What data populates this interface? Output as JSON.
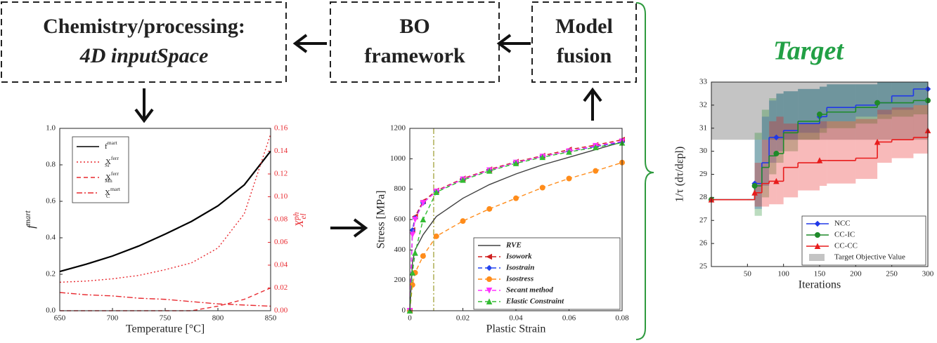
{
  "boxes": [
    {
      "lines": [
        "Chemistry/processing:",
        "4D inputSpace"
      ]
    },
    {
      "lines": [
        "BO",
        "framework"
      ]
    },
    {
      "lines": [
        "Model",
        "fusion"
      ]
    }
  ],
  "target_label": "Target",
  "chart_data": [
    {
      "type": "line",
      "x": [
        650,
        675,
        700,
        725,
        750,
        775,
        800,
        825,
        850
      ],
      "xlim": [
        650,
        850
      ],
      "xticks": [
        650,
        700,
        750,
        800,
        850
      ],
      "ylim": [
        0,
        1
      ],
      "yticks": [
        {
          "value": 0,
          "label": "0.0"
        },
        0.2,
        0.4,
        0.6,
        0.8,
        {
          "value": 1,
          "label": "1.0"
        }
      ],
      "y2lim": [
        0,
        0.16
      ],
      "y2ticks": [
        {
          "value": 0,
          "label": "0.00"
        },
        0.02,
        0.04,
        0.06,
        0.08,
        {
          "value": 0.1,
          "label": "0.10"
        },
        0.12,
        0.14,
        0.16
      ],
      "xlabel": "Temperature [°C]",
      "ylabel": {
        "base": "f",
        "sup": "mart"
      },
      "y2label": {
        "base": "X",
        "sup": "ph",
        "sub": "el"
      },
      "y2color": "#e8292f",
      "series": [
        {
          "name": {
            "base": "f",
            "sup": "mart"
          },
          "color": "#000000",
          "linestyle": "solid",
          "values": [
            0.215,
            0.255,
            0.3,
            0.355,
            0.42,
            0.49,
            0.575,
            0.69,
            0.875
          ]
        },
        {
          "name": {
            "base": "X",
            "sup": "ferr",
            "sub": "Si"
          },
          "color": "#e8292f",
          "linestyle": "dotted",
          "axis": "y2",
          "values": [
            0.025,
            0.026,
            0.028,
            0.031,
            0.036,
            0.042,
            0.055,
            0.085,
            0.155
          ]
        },
        {
          "name": {
            "base": "X",
            "sup": "ferr",
            "sub": "Mn"
          },
          "color": "#e8292f",
          "linestyle": "dashed",
          "axis": "y2",
          "values": [
            0,
            0,
            0,
            0,
            0,
            0,
            0.004,
            0.01,
            0.02
          ]
        },
        {
          "name": {
            "base": "X",
            "sup": "mart",
            "sub": "C"
          },
          "color": "#e8292f",
          "linestyle": "dashdot",
          "axis": "y2",
          "values": [
            0.016,
            0.014,
            0.013,
            0.011,
            0.01,
            0.008,
            0.006,
            0.005,
            0.004
          ]
        }
      ],
      "legend": "upper left"
    },
    {
      "type": "line",
      "x": [
        0,
        0.001,
        0.002,
        0.005,
        0.01,
        0.02,
        0.03,
        0.04,
        0.05,
        0.06,
        0.07,
        0.08
      ],
      "xlim": [
        0,
        0.08
      ],
      "xticks": [
        0,
        0.02,
        0.04,
        0.06,
        0.08
      ],
      "ylim": [
        0,
        1200
      ],
      "yticks": [
        0,
        200,
        400,
        600,
        800,
        1000,
        1200
      ],
      "xlabel": "Plastic Strain",
      "ylabel": "Stress [MPa]",
      "vline": 0.009,
      "vline_color": "#9a9a2a",
      "series": [
        {
          "name": "RVE",
          "color": "#404040",
          "linestyle": "solid",
          "values": [
            0,
            320,
            400,
            500,
            620,
            740,
            830,
            900,
            960,
            1010,
            1060,
            1110
          ]
        },
        {
          "name": "Isowork",
          "color": "#d02020",
          "linestyle": "dashed",
          "marker": "triangle-left",
          "values": [
            0,
            530,
            620,
            720,
            790,
            870,
            930,
            980,
            1020,
            1060,
            1090,
            1125
          ]
        },
        {
          "name": "Isostrain",
          "color": "#2444ee",
          "linestyle": "dashed",
          "marker": "diamond",
          "values": [
            0,
            530,
            610,
            710,
            785,
            865,
            925,
            975,
            1015,
            1050,
            1080,
            1110
          ]
        },
        {
          "name": "Isostress",
          "color": "#ff8c1a",
          "linestyle": "dashed",
          "marker": "circle",
          "values": [
            0,
            170,
            250,
            360,
            490,
            590,
            670,
            740,
            810,
            870,
            920,
            975
          ]
        },
        {
          "name": "Secant method",
          "color": "#ff33ff",
          "linestyle": "dashed",
          "marker": "triangle-down",
          "values": [
            0,
            500,
            600,
            710,
            785,
            865,
            925,
            975,
            1015,
            1050,
            1085,
            1115
          ]
        },
        {
          "name": "Elastic Constraint",
          "color": "#33bb33",
          "linestyle": "dashed",
          "marker": "triangle",
          "values": [
            0,
            250,
            380,
            600,
            780,
            860,
            920,
            970,
            1010,
            1045,
            1075,
            1105
          ]
        }
      ],
      "legend": "lower right"
    },
    {
      "type": "step",
      "x": [
        0,
        25,
        50,
        60,
        70,
        80,
        90,
        100,
        120,
        150,
        160,
        200,
        230,
        250,
        280,
        300
      ],
      "xlim": [
        0,
        300
      ],
      "xticks": [
        50,
        100,
        150,
        200,
        250,
        300
      ],
      "ylim": [
        25,
        33
      ],
      "yticks": [
        25,
        26,
        27,
        28,
        29,
        30,
        31,
        32,
        33
      ],
      "xlabel": "Iterations",
      "ylabel": "1/τ (dτ/dεpl)",
      "target": [
        30.5,
        33
      ],
      "target_name": "Target Objective Value",
      "target_color": "#c4c4c4",
      "series": [
        {
          "name": "NCC",
          "color": "#2038e8",
          "marker": "diamond",
          "values": [
            27.9,
            27.9,
            27.9,
            28.6,
            29.5,
            30.6,
            30.6,
            30.9,
            31.2,
            31.5,
            31.9,
            32.0,
            32.1,
            32.4,
            32.7,
            32.7
          ],
          "lower": [
            27.9,
            27.9,
            27.9,
            27.5,
            28.5,
            29.5,
            30,
            30.5,
            30.8,
            31,
            31.3,
            31.5,
            31.6,
            31.8,
            32,
            32.2
          ],
          "upper": [
            27.9,
            27.9,
            27.9,
            30.5,
            31.5,
            32.2,
            32.5,
            32.6,
            32.7,
            32.8,
            32.9,
            32.9,
            33,
            33,
            33,
            33
          ]
        },
        {
          "name": "CC-IC",
          "color": "#1f8a2a",
          "marker": "circle",
          "values": [
            27.9,
            27.9,
            27.9,
            28.5,
            29.3,
            29.8,
            29.9,
            30.8,
            31.3,
            31.6,
            31.7,
            31.9,
            32.1,
            32.1,
            32.2,
            32.2
          ],
          "lower": [
            27.9,
            27.9,
            27.9,
            27.2,
            28,
            29,
            29.5,
            30,
            30.5,
            30.8,
            31,
            31.2,
            31.4,
            31.5,
            31.6,
            31.6
          ],
          "upper": [
            27.9,
            27.9,
            27.9,
            30.8,
            31.8,
            32.3,
            32.5,
            32.6,
            32.7,
            32.8,
            32.9,
            32.9,
            33,
            33,
            33,
            33
          ]
        },
        {
          "name": "CC-CC",
          "color": "#e81c1c",
          "marker": "triangle",
          "values": [
            27.9,
            27.9,
            27.9,
            28.2,
            28.6,
            28.7,
            28.7,
            29.3,
            29.5,
            29.6,
            29.6,
            29.7,
            30.4,
            30.5,
            30.6,
            30.9
          ],
          "lower": [
            27.9,
            27.9,
            27.9,
            27.6,
            27.6,
            27.7,
            27.7,
            28,
            28.3,
            28.5,
            28.6,
            28.8,
            29.5,
            29.7,
            29.9,
            30.1
          ],
          "upper": [
            27.9,
            27.9,
            27.9,
            29.5,
            30.5,
            31.3,
            31.5,
            31.2,
            31.2,
            31.3,
            31.3,
            31.4,
            31.8,
            31.9,
            32.0,
            32.3
          ]
        }
      ],
      "legend": "lower right"
    }
  ]
}
